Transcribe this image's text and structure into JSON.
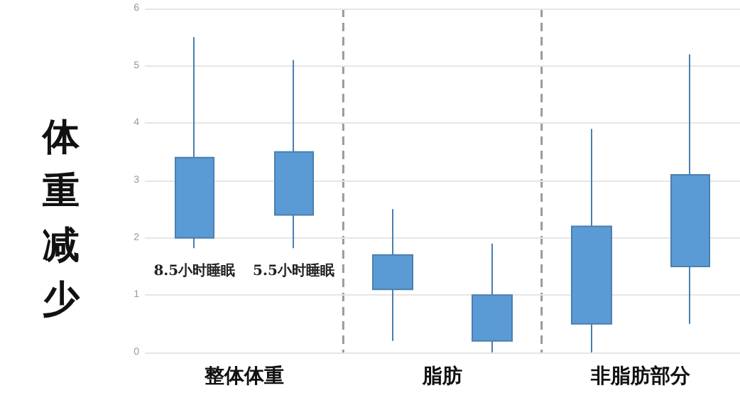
{
  "chart_data": {
    "type": "candlestick",
    "ylabel": "体重减少",
    "categories": [
      "8.5小时睡眠",
      "5.5小时睡眠",
      null,
      null,
      null,
      null
    ],
    "ohlc": [
      [
        2.0,
        5.5,
        1.82,
        3.4
      ],
      [
        2.4,
        5.1,
        1.82,
        3.5
      ],
      [
        1.1,
        2.5,
        0.2,
        1.7
      ],
      [
        0.2,
        1.9,
        0,
        1.0
      ],
      [
        0.5,
        3.9,
        0,
        2.2
      ],
      [
        1.5,
        5.2,
        0.5,
        3.1
      ]
    ],
    "color": "#5b9bd5",
    "annotations": [
      "整体体重",
      "脂肪",
      "非脂肪部分"
    ],
    "ylim": [
      0,
      6
    ],
    "yticks": [
      0,
      1,
      2,
      3,
      4,
      5,
      6
    ],
    "grid": "y"
  }
}
